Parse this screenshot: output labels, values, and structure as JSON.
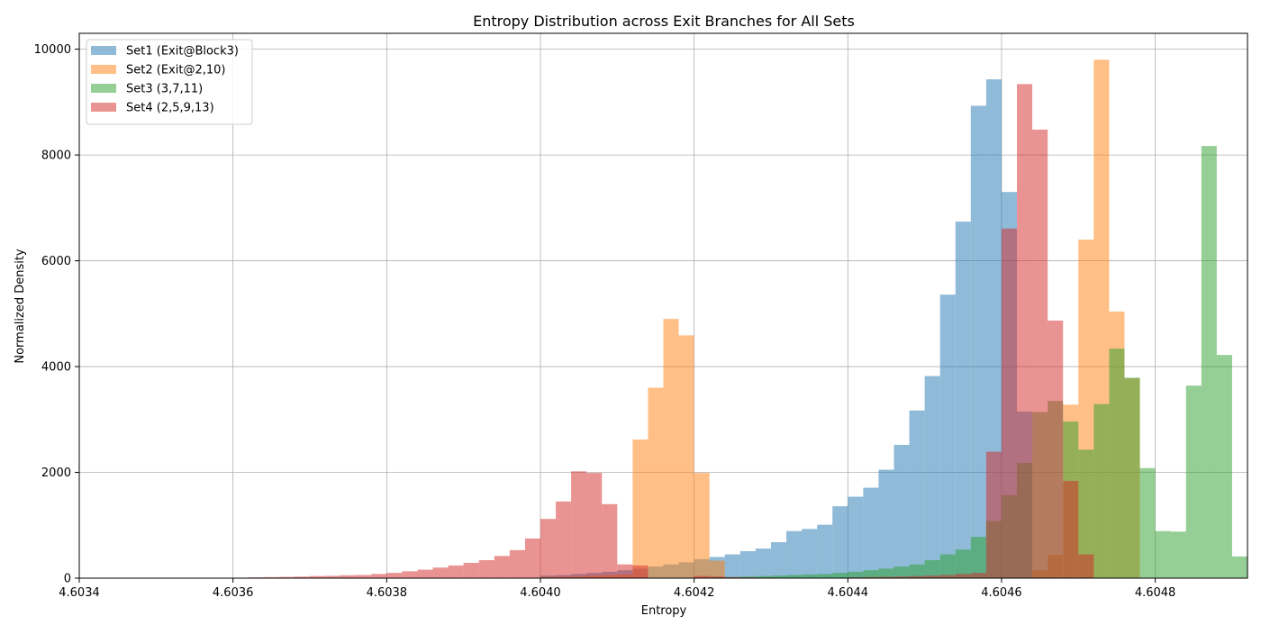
{
  "chart_data": {
    "type": "histogram",
    "title": "Entropy Distribution across Exit Branches for All Sets",
    "xlabel": "Entropy",
    "ylabel": "Normalized Density",
    "xlim": [
      4.6034,
      4.60492
    ],
    "ylim": [
      0,
      10300
    ],
    "xticks": [
      4.6034,
      4.6036,
      4.6038,
      4.604,
      4.6042,
      4.6044,
      4.6046,
      4.6048
    ],
    "xtick_labels": [
      "4.6034",
      "4.6036",
      "4.6038",
      "4.6040",
      "4.6042",
      "4.6044",
      "4.6046",
      "4.6048"
    ],
    "yticks": [
      0,
      2000,
      4000,
      6000,
      8000,
      10000
    ],
    "ytick_labels": [
      "0",
      "2000",
      "4000",
      "6000",
      "8000",
      "10000"
    ],
    "grid": true,
    "legend_position": "top-left",
    "bar_alpha": 0.5,
    "series": [
      {
        "name": "Set1 (Exit@Block3)",
        "color": "#1f77b4",
        "bins": [
          [
            4.604,
            4.60402,
            50
          ],
          [
            4.60402,
            4.60404,
            60
          ],
          [
            4.60404,
            4.60406,
            80
          ],
          [
            4.60406,
            4.60408,
            100
          ],
          [
            4.60408,
            4.6041,
            120
          ],
          [
            4.6041,
            4.60412,
            150
          ],
          [
            4.60412,
            4.60414,
            180
          ],
          [
            4.60414,
            4.60416,
            220
          ],
          [
            4.60416,
            4.60418,
            260
          ],
          [
            4.60418,
            4.6042,
            300
          ],
          [
            4.6042,
            4.60422,
            360
          ],
          [
            4.60422,
            4.60424,
            400
          ],
          [
            4.60424,
            4.60426,
            450
          ],
          [
            4.60426,
            4.60428,
            510
          ],
          [
            4.60428,
            4.6043,
            560
          ],
          [
            4.6043,
            4.60432,
            680
          ],
          [
            4.60432,
            4.60434,
            890
          ],
          [
            4.60434,
            4.60436,
            930
          ],
          [
            4.60436,
            4.60438,
            1010
          ],
          [
            4.60438,
            4.6044,
            1360
          ],
          [
            4.6044,
            4.60442,
            1540
          ],
          [
            4.60442,
            4.60444,
            1710
          ],
          [
            4.60444,
            4.60446,
            2050
          ],
          [
            4.60446,
            4.60448,
            2520
          ],
          [
            4.60448,
            4.6045,
            3170
          ],
          [
            4.6045,
            4.60452,
            3820
          ],
          [
            4.60452,
            4.60454,
            5360
          ],
          [
            4.60454,
            4.60456,
            6740
          ],
          [
            4.60456,
            4.60458,
            8930
          ],
          [
            4.60458,
            4.6046,
            9430
          ],
          [
            4.6046,
            4.60462,
            7300
          ],
          [
            4.60462,
            4.60464,
            3150
          ]
        ]
      },
      {
        "name": "Set2 (Exit@2,10)",
        "color": "#ff7f0e",
        "bins": [
          [
            4.604,
            4.60402,
            20
          ],
          [
            4.60402,
            4.60404,
            25
          ],
          [
            4.60404,
            4.60406,
            30
          ],
          [
            4.60406,
            4.60408,
            50
          ],
          [
            4.60408,
            4.6041,
            60
          ],
          [
            4.6041,
            4.60412,
            70
          ],
          [
            4.60412,
            4.60414,
            2620
          ],
          [
            4.60414,
            4.60416,
            3600
          ],
          [
            4.60416,
            4.60418,
            4900
          ],
          [
            4.60418,
            4.6042,
            4590
          ],
          [
            4.6042,
            4.60422,
            1990
          ],
          [
            4.60422,
            4.60424,
            330
          ],
          [
            4.60464,
            4.60466,
            150
          ],
          [
            4.60466,
            4.60468,
            440
          ],
          [
            4.60468,
            4.6047,
            3280
          ],
          [
            4.6047,
            4.60472,
            6400
          ],
          [
            4.60472,
            4.60474,
            9800
          ],
          [
            4.60474,
            4.60476,
            5040
          ],
          [
            4.60476,
            4.60478,
            3780
          ]
        ]
      },
      {
        "name": "Set3 (3,7,11)",
        "color": "#2ca02c",
        "bins": [
          [
            4.6042,
            4.60422,
            10
          ],
          [
            4.60422,
            4.60424,
            15
          ],
          [
            4.60424,
            4.60426,
            20
          ],
          [
            4.60426,
            4.60428,
            30
          ],
          [
            4.60428,
            4.6043,
            40
          ],
          [
            4.6043,
            4.60432,
            50
          ],
          [
            4.60432,
            4.60434,
            60
          ],
          [
            4.60434,
            4.60436,
            70
          ],
          [
            4.60436,
            4.60438,
            80
          ],
          [
            4.60438,
            4.6044,
            100
          ],
          [
            4.6044,
            4.60442,
            120
          ],
          [
            4.60442,
            4.60444,
            150
          ],
          [
            4.60444,
            4.60446,
            180
          ],
          [
            4.60446,
            4.60448,
            220
          ],
          [
            4.60448,
            4.6045,
            260
          ],
          [
            4.6045,
            4.60452,
            340
          ],
          [
            4.60452,
            4.60454,
            450
          ],
          [
            4.60454,
            4.60456,
            540
          ],
          [
            4.60456,
            4.60458,
            780
          ],
          [
            4.60458,
            4.6046,
            1080
          ],
          [
            4.6046,
            4.60462,
            1570
          ],
          [
            4.60462,
            4.60464,
            2180
          ],
          [
            4.60464,
            4.60466,
            3140
          ],
          [
            4.60466,
            4.60468,
            3350
          ],
          [
            4.60468,
            4.6047,
            2960
          ],
          [
            4.6047,
            4.60472,
            2430
          ],
          [
            4.60472,
            4.60474,
            3290
          ],
          [
            4.60474,
            4.60476,
            4340
          ],
          [
            4.60476,
            4.60478,
            3790
          ],
          [
            4.60478,
            4.6048,
            2080
          ],
          [
            4.6048,
            4.60482,
            890
          ],
          [
            4.60482,
            4.60484,
            880
          ],
          [
            4.60484,
            4.60486,
            3640
          ],
          [
            4.60486,
            4.60488,
            8170
          ],
          [
            4.60488,
            4.6049,
            4220
          ],
          [
            4.6049,
            4.60492,
            410
          ]
        ]
      },
      {
        "name": "Set4 (2,5,9,13)",
        "color": "#d62728",
        "bins": [
          [
            4.60344,
            4.60346,
            5
          ],
          [
            4.6036,
            4.60362,
            10
          ],
          [
            4.60362,
            4.60364,
            15
          ],
          [
            4.60364,
            4.60366,
            20
          ],
          [
            4.60366,
            4.60368,
            25
          ],
          [
            4.60368,
            4.6037,
            30
          ],
          [
            4.6037,
            4.60372,
            40
          ],
          [
            4.60372,
            4.60374,
            45
          ],
          [
            4.60374,
            4.60376,
            55
          ],
          [
            4.60376,
            4.60378,
            60
          ],
          [
            4.60378,
            4.6038,
            80
          ],
          [
            4.6038,
            4.60382,
            100
          ],
          [
            4.60382,
            4.60384,
            130
          ],
          [
            4.60384,
            4.60386,
            160
          ],
          [
            4.60386,
            4.60388,
            200
          ],
          [
            4.60388,
            4.6039,
            240
          ],
          [
            4.6039,
            4.60392,
            290
          ],
          [
            4.60392,
            4.60394,
            340
          ],
          [
            4.60394,
            4.60396,
            420
          ],
          [
            4.60396,
            4.60398,
            530
          ],
          [
            4.60398,
            4.604,
            750
          ],
          [
            4.604,
            4.60402,
            1120
          ],
          [
            4.60402,
            4.60404,
            1450
          ],
          [
            4.60404,
            4.60406,
            2020
          ],
          [
            4.60406,
            4.60408,
            1990
          ],
          [
            4.60408,
            4.6041,
            1400
          ],
          [
            4.6041,
            4.60412,
            260
          ],
          [
            4.60412,
            4.60414,
            240
          ],
          [
            4.6042,
            4.60422,
            40
          ],
          [
            4.60422,
            4.60424,
            30
          ],
          [
            4.60424,
            4.60426,
            20
          ],
          [
            4.60426,
            4.60428,
            15
          ],
          [
            4.60428,
            4.6043,
            10
          ],
          [
            4.6044,
            4.60442,
            15
          ],
          [
            4.60442,
            4.60444,
            20
          ],
          [
            4.60444,
            4.60446,
            25
          ],
          [
            4.60446,
            4.60448,
            30
          ],
          [
            4.60448,
            4.6045,
            40
          ],
          [
            4.6045,
            4.60452,
            50
          ],
          [
            4.60452,
            4.60454,
            60
          ],
          [
            4.60454,
            4.60456,
            80
          ],
          [
            4.60456,
            4.60458,
            100
          ],
          [
            4.60458,
            4.6046,
            2390
          ],
          [
            4.6046,
            4.60462,
            6610
          ],
          [
            4.60462,
            4.60464,
            9340
          ],
          [
            4.60464,
            4.60466,
            8480
          ],
          [
            4.60466,
            4.60468,
            4870
          ],
          [
            4.60468,
            4.6047,
            1840
          ],
          [
            4.6047,
            4.60472,
            450
          ]
        ]
      }
    ]
  }
}
